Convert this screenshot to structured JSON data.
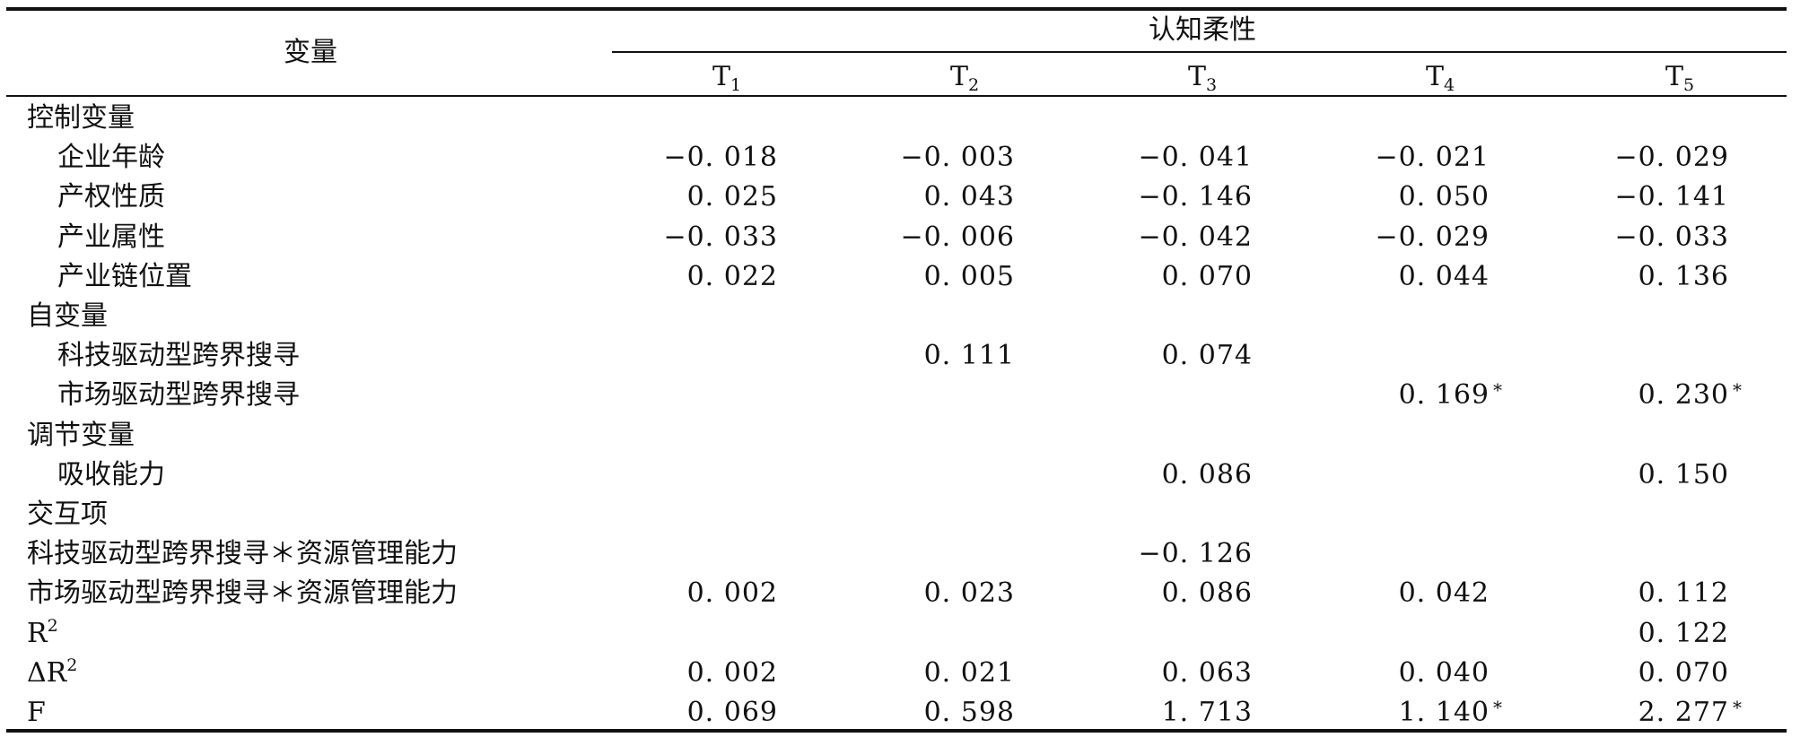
{
  "table": {
    "header_variable": "变量",
    "header_group": "认知柔性",
    "columns": [
      {
        "base": "T",
        "sub": "1"
      },
      {
        "base": "T",
        "sub": "2"
      },
      {
        "base": "T",
        "sub": "3"
      },
      {
        "base": "T",
        "sub": "4"
      },
      {
        "base": "T",
        "sub": "5"
      }
    ],
    "rows": [
      {
        "label": "控制变量",
        "indent": false,
        "values": [
          "",
          "",
          "",
          "",
          ""
        ],
        "stars": [
          "",
          "",
          "",
          "",
          ""
        ]
      },
      {
        "label": "企业年龄",
        "indent": true,
        "values": [
          "−0. 018",
          "−0. 003",
          "−0. 041",
          "−0. 021",
          "−0. 029"
        ],
        "stars": [
          "",
          "",
          "",
          "",
          ""
        ]
      },
      {
        "label": "产权性质",
        "indent": true,
        "values": [
          "0. 025",
          "0. 043",
          "−0. 146",
          "0. 050",
          "−0. 141"
        ],
        "stars": [
          "",
          "",
          "",
          "",
          ""
        ]
      },
      {
        "label": "产业属性",
        "indent": true,
        "values": [
          "−0. 033",
          "−0. 006",
          "−0. 042",
          "−0. 029",
          "−0. 033"
        ],
        "stars": [
          "",
          "",
          "",
          "",
          ""
        ]
      },
      {
        "label": "产业链位置",
        "indent": true,
        "values": [
          "0. 022",
          "0. 005",
          "0. 070",
          "0. 044",
          "0. 136"
        ],
        "stars": [
          "",
          "",
          "",
          "",
          ""
        ]
      },
      {
        "label": "自变量",
        "indent": false,
        "values": [
          "",
          "",
          "",
          "",
          ""
        ],
        "stars": [
          "",
          "",
          "",
          "",
          ""
        ]
      },
      {
        "label": "科技驱动型跨界搜寻",
        "indent": true,
        "values": [
          "",
          "0. 111",
          "0. 074",
          "",
          ""
        ],
        "stars": [
          "",
          "",
          "",
          "",
          ""
        ]
      },
      {
        "label": "市场驱动型跨界搜寻",
        "indent": true,
        "values": [
          "",
          "",
          "",
          "0. 169",
          "0. 230"
        ],
        "stars": [
          "",
          "",
          "",
          "*",
          "*"
        ]
      },
      {
        "label": "调节变量",
        "indent": false,
        "values": [
          "",
          "",
          "",
          "",
          ""
        ],
        "stars": [
          "",
          "",
          "",
          "",
          ""
        ]
      },
      {
        "label": "吸收能力",
        "indent": true,
        "values": [
          "",
          "",
          "0. 086",
          "",
          "0. 150"
        ],
        "stars": [
          "",
          "",
          "",
          "",
          ""
        ]
      },
      {
        "label": "交互项",
        "indent": false,
        "values": [
          "",
          "",
          "",
          "",
          ""
        ],
        "stars": [
          "",
          "",
          "",
          "",
          ""
        ]
      },
      {
        "label": "科技驱动型跨界搜寻＊资源管理能力",
        "indent": false,
        "values": [
          "",
          "",
          "−0. 126",
          "",
          ""
        ],
        "stars": [
          "",
          "",
          "",
          "",
          ""
        ]
      },
      {
        "label": "市场驱动型跨界搜寻＊资源管理能力",
        "indent": false,
        "values": [
          "0. 002",
          "0. 023",
          "0. 086",
          "0. 042",
          "0. 112"
        ],
        "stars": [
          "",
          "",
          "",
          "",
          ""
        ]
      },
      {
        "label": "R",
        "sup": "2",
        "indent": false,
        "values": [
          "",
          "",
          "",
          "",
          "0. 122"
        ],
        "stars": [
          "",
          "",
          "",
          "",
          ""
        ]
      },
      {
        "label": "ΔR",
        "sup": "2",
        "indent": false,
        "values": [
          "0. 002",
          "0. 021",
          "0. 063",
          "0. 040",
          "0. 070"
        ],
        "stars": [
          "",
          "",
          "",
          "",
          ""
        ]
      },
      {
        "label": "F",
        "indent": false,
        "values": [
          "0. 069",
          "0. 598",
          "1. 713",
          "1. 140",
          "2. 277"
        ],
        "stars": [
          "",
          "",
          "",
          "*",
          "*"
        ]
      }
    ]
  }
}
